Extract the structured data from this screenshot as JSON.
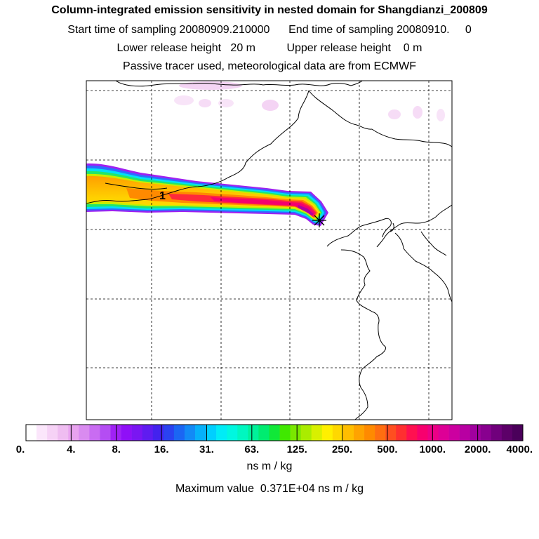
{
  "header": {
    "title": "Column-integrated emission sensitivity in nested domain for Shangdianzi_200809",
    "sampling_line": "Start time of sampling 20080909.210000      End time of sampling 20080910.     0",
    "release_line": "Lower release height   20 m          Upper release height    0 m",
    "tracer_line": "Passive tracer used, meteorological data are from ECMWF"
  },
  "chart_data": {
    "type": "heatmap",
    "title": "Column-integrated emission sensitivity in nested domain for Shangdianzi_200809",
    "units": "ns m / kg",
    "max_value_text": "Maximum value  0.371E+04 ns m / kg",
    "max_value": 3710,
    "station_label": "1",
    "colorbar": {
      "tick_labels": [
        "0.",
        "4.",
        "8.",
        "16.",
        "31.",
        "63.",
        "125.",
        "250.",
        "500.",
        "1000.",
        "2000.",
        "4000."
      ],
      "tick_values": [
        0,
        4,
        8,
        16,
        31,
        63,
        125,
        250,
        500,
        1000,
        2000,
        4000
      ],
      "colors": [
        "#ffffff",
        "#fbe6fb",
        "#f6d2f6",
        "#efbdf1",
        "#e8a3ef",
        "#d98bf0",
        "#c96cf2",
        "#b44df3",
        "#a022f5",
        "#8f10f7",
        "#7a16f2",
        "#5f1cf0",
        "#4322ee",
        "#2a42f0",
        "#1b66f3",
        "#128af6",
        "#06b0fa",
        "#00cfff",
        "#00ecf6",
        "#00f7e0",
        "#00f7c0",
        "#00f19a",
        "#00ec70",
        "#10e838",
        "#40e800",
        "#7ae800",
        "#aaec00",
        "#d8f000",
        "#fff000",
        "#ffd800",
        "#ffbe00",
        "#ffa300",
        "#ff8a00",
        "#ff6e10",
        "#ff4f20",
        "#ff2f30",
        "#ff1050",
        "#f7006e",
        "#ec0086",
        "#de0096",
        "#cc00a0",
        "#b800a2",
        "#a0009e",
        "#88008f",
        "#70007c",
        "#5c0068",
        "#4a005a"
      ]
    },
    "plume": {
      "description": "tail extends west from the station",
      "ranges_ns_m_per_kg": [
        "8-16",
        "16-31",
        "31-63",
        "63-125",
        "125-250",
        "250-500",
        "500-1000",
        "1000-2000",
        "2000-4000"
      ]
    }
  }
}
